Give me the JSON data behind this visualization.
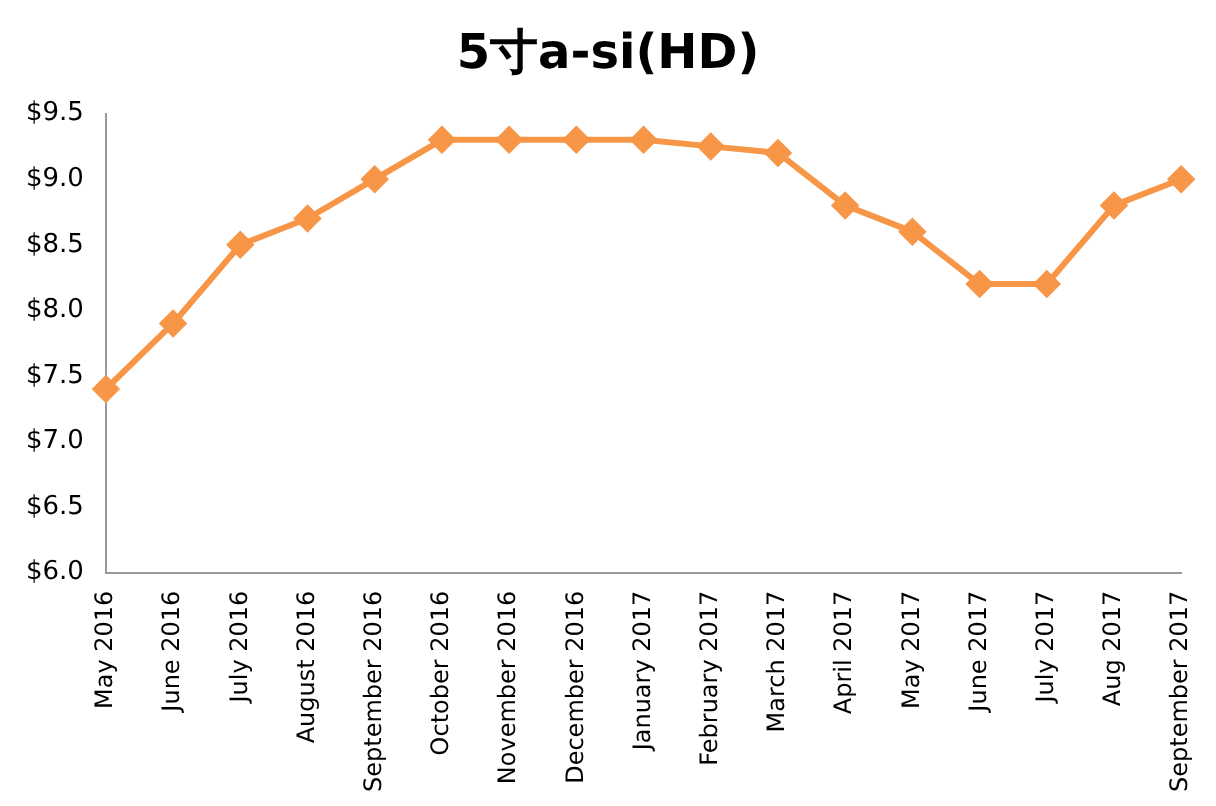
{
  "chart_data": {
    "type": "line",
    "title": "5寸a-si(HD)",
    "categories": [
      "May 2016",
      "June 2016",
      "July 2016",
      "August 2016",
      "September 2016",
      "October 2016",
      "November 2016",
      "December 2016",
      "January 2017",
      "February 2017",
      "March 2017",
      "April 2017",
      "May 2017",
      "June 2017",
      "July 2017",
      "Aug 2017",
      "September 2017"
    ],
    "series": [
      {
        "color": "#f79646",
        "values": [
          7.4,
          7.9,
          8.5,
          8.7,
          9.0,
          9.3,
          9.3,
          9.3,
          9.3,
          9.25,
          9.2,
          8.8,
          8.6,
          8.2,
          8.2,
          8.8,
          9.0
        ]
      }
    ],
    "ylim": [
      6.0,
      9.5
    ],
    "yticks": [
      {
        "value": 6.0,
        "label": "$6.0"
      },
      {
        "value": 6.5,
        "label": "$6.5"
      },
      {
        "value": 7.0,
        "label": "$7.0"
      },
      {
        "value": 7.5,
        "label": "$7.5"
      },
      {
        "value": 8.0,
        "label": "$8.0"
      },
      {
        "value": 8.5,
        "label": "$8.5"
      },
      {
        "value": 9.0,
        "label": "$9.0"
      },
      {
        "value": 9.5,
        "label": "$9.5"
      }
    ],
    "grid": false,
    "legend": false,
    "marker": "diamond",
    "line_style": "solid"
  }
}
